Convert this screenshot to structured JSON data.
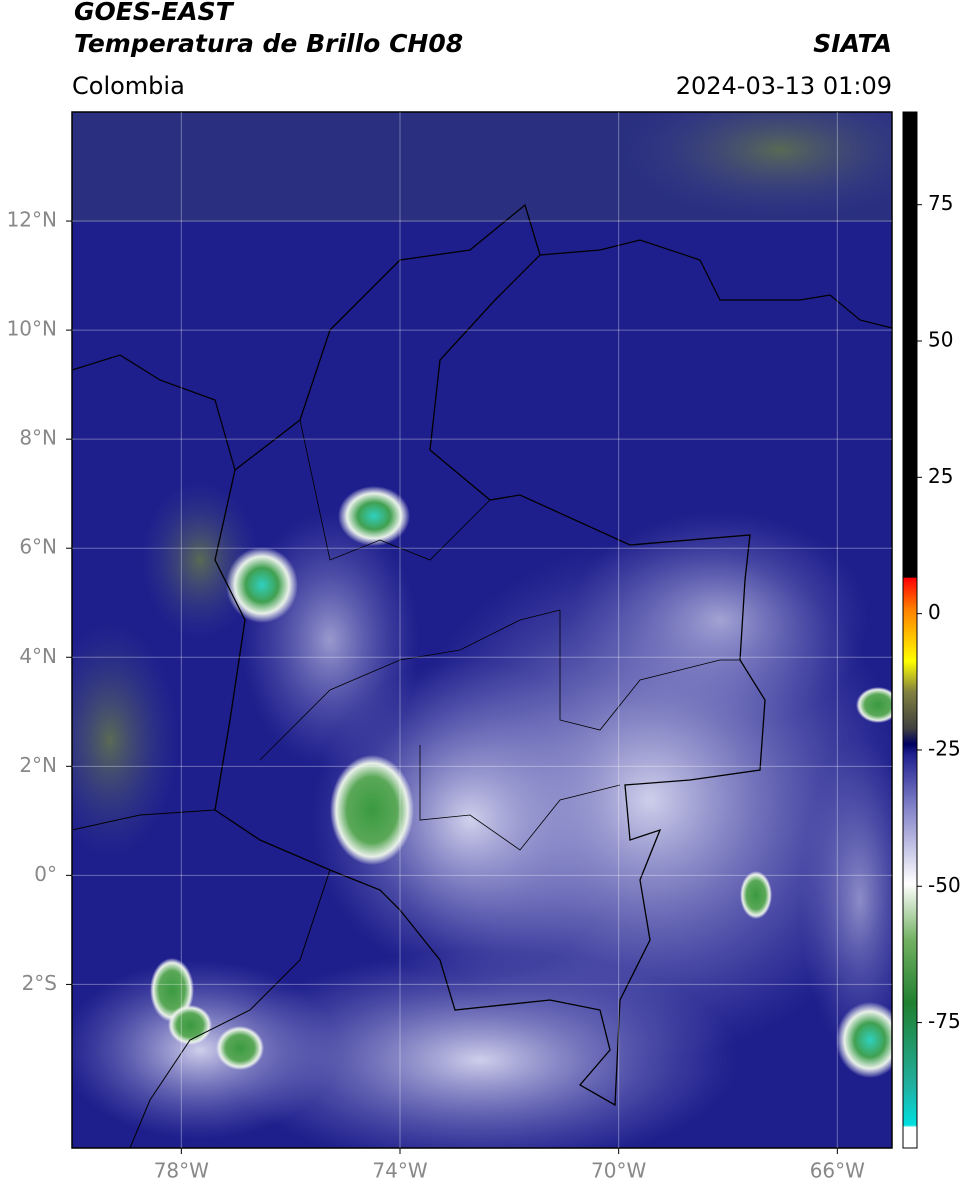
{
  "header": {
    "title": "GOES-EAST",
    "subtitle": "Temperatura de Brillo CH08",
    "region": "Colombia",
    "source": "SIATA",
    "timestamp": "2024-03-13 01:09"
  },
  "map": {
    "lon_range": [
      -80,
      -65
    ],
    "lat_range": [
      -5,
      14
    ],
    "lon_ticks": [
      {
        "value": -78,
        "label": "78°W"
      },
      {
        "value": -74,
        "label": "74°W"
      },
      {
        "value": -70,
        "label": "70°W"
      },
      {
        "value": -66,
        "label": "66°W"
      }
    ],
    "lat_ticks": [
      {
        "value": 12,
        "label": "12°N"
      },
      {
        "value": 10,
        "label": "10°N"
      },
      {
        "value": 8,
        "label": "8°N"
      },
      {
        "value": 6,
        "label": "6°N"
      },
      {
        "value": 4,
        "label": "4°N"
      },
      {
        "value": 2,
        "label": "2°N"
      },
      {
        "value": 0,
        "label": "0°"
      },
      {
        "value": -2,
        "label": "2°S"
      }
    ],
    "grid": true
  },
  "colorbar": {
    "range": [
      -98,
      92
    ],
    "ticks": [
      75,
      50,
      25,
      0,
      -25,
      -50,
      -75
    ]
  }
}
